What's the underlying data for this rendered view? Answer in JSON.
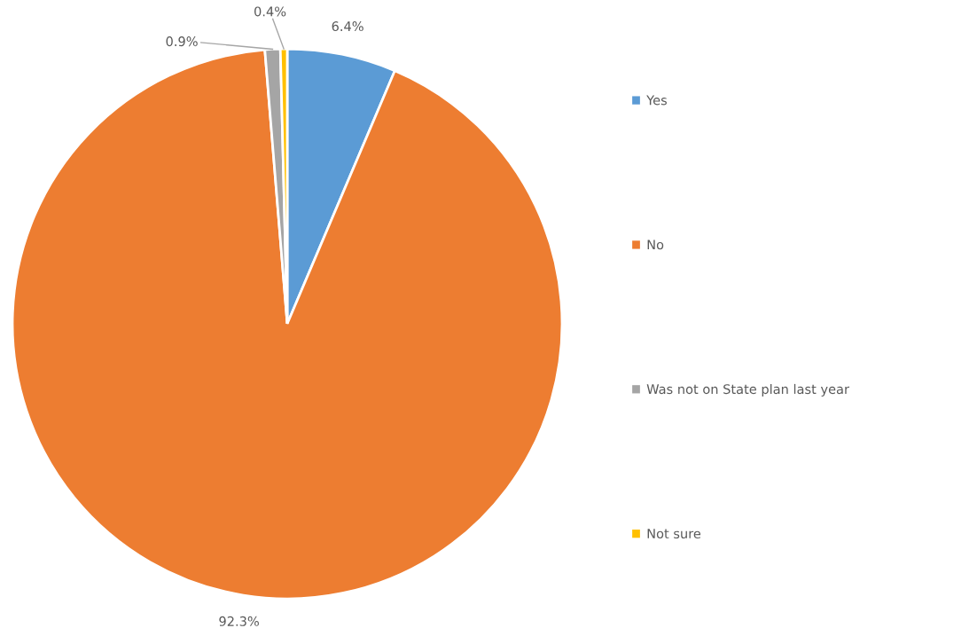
{
  "chart_data": {
    "type": "pie",
    "categories": [
      "Yes",
      "No",
      "Was not on State plan last year",
      "Not sure"
    ],
    "values": [
      6.4,
      92.3,
      0.9,
      0.4
    ],
    "colors": [
      "#5b9bd5",
      "#ed7d31",
      "#a5a5a5",
      "#ffc000"
    ],
    "value_labels": [
      "6.4%",
      "92.3%",
      "0.9%",
      "0.4%"
    ],
    "legend": "right"
  }
}
